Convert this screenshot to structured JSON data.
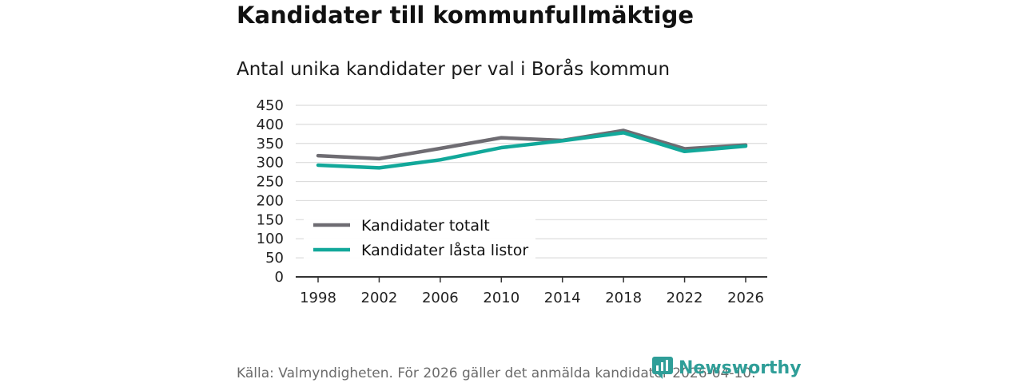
{
  "header": {
    "title": "Kandidater till kommunfullmäktige",
    "subtitle": "Antal unika kandidater per val i Borås kommun"
  },
  "footer": {
    "source": "Källa: Valmyndigheten. För 2026 gäller det anmälda kandidater 2026-04-10.",
    "brand": "Newsworthy"
  },
  "chart_data": {
    "type": "line",
    "title": "Kandidater till kommunfullmäktige",
    "subtitle": "Antal unika kandidater per val i Borås kommun",
    "xlabel": "",
    "ylabel": "",
    "categories": [
      "1998",
      "2002",
      "2006",
      "2010",
      "2014",
      "2018",
      "2022",
      "2026"
    ],
    "yticks": [
      0,
      50,
      100,
      150,
      200,
      250,
      300,
      350,
      400,
      450
    ],
    "ylim": [
      0,
      450
    ],
    "grid": true,
    "legend_position": "bottom-left",
    "series": [
      {
        "name": "Kandidater totalt",
        "color": "#6e6c72",
        "values": [
          318,
          310,
          337,
          365,
          358,
          384,
          336,
          346
        ]
      },
      {
        "name": "Kandidater låsta listor",
        "color": "#12a89a",
        "values": [
          293,
          286,
          307,
          339,
          357,
          378,
          329,
          343
        ]
      }
    ]
  }
}
